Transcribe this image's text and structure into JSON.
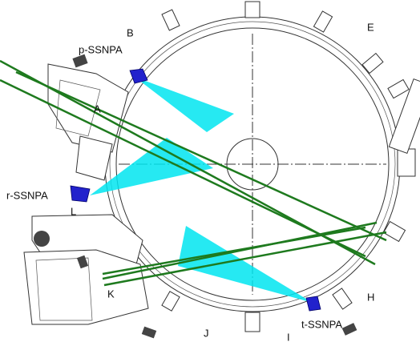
{
  "labels": [
    "B",
    "p-SSNPA",
    "E",
    "A",
    "r-SSNPA",
    "L",
    "K",
    "H",
    "J",
    "I",
    "t-SSNPA"
  ]
}
